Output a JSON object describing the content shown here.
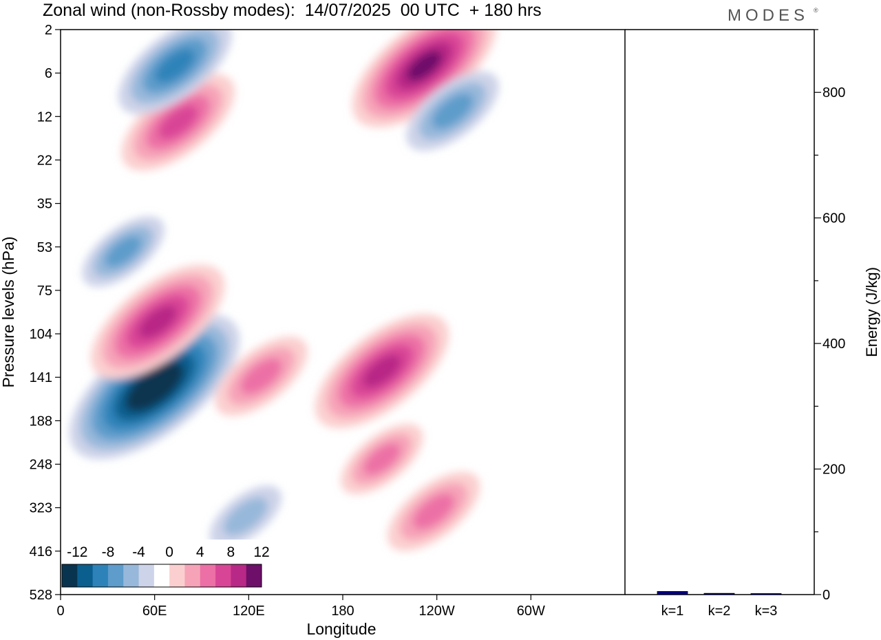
{
  "title": "Zonal wind (non-Rossby modes):  14/07/2025  00 UTC  + 180 hrs",
  "logo": "MODES",
  "chart_data": [
    {
      "type": "heatmap",
      "xlabel": "Longitude",
      "ylabel": "Pressure levels (hPa)",
      "x_ticks": [
        "0",
        "60E",
        "120E",
        "180",
        "120W",
        "60W"
      ],
      "y_ticks": [
        "2",
        "6",
        "12",
        "22",
        "35",
        "53",
        "75",
        "104",
        "141",
        "188",
        "248",
        "323",
        "416",
        "528"
      ],
      "colorbar": {
        "tick_labels": [
          "-12",
          "-8",
          "-4",
          "0",
          "4",
          "8",
          "12"
        ],
        "levels": [
          -14,
          -12,
          -10,
          -8,
          -6,
          -4,
          -2,
          2,
          4,
          6,
          8,
          10,
          12,
          14
        ],
        "colors": [
          "#08344f",
          "#0a5f8f",
          "#2d83b9",
          "#5d9ccb",
          "#97b8da",
          "#cdd3e8",
          "#ffffff",
          "#fbcfcf",
          "#f6a3b8",
          "#ec6fa5",
          "#d94596",
          "#b82886",
          "#6e0f6a"
        ]
      },
      "features": [
        {
          "lon": 60,
          "lev": 150,
          "value": -13.5,
          "note": "strong negative core"
        },
        {
          "lon": 62,
          "lev": 95,
          "value": 10
        },
        {
          "lon": 205,
          "lev": 135,
          "value": 10
        },
        {
          "lon": 128,
          "lev": 140,
          "value": 6
        },
        {
          "lon": 232,
          "lev": 5,
          "value": 11
        },
        {
          "lon": 75,
          "lev": 13,
          "value": 8
        },
        {
          "lon": 73,
          "lev": 5,
          "value": -8
        },
        {
          "lon": 250,
          "lev": 11,
          "value": -6
        },
        {
          "lon": 238,
          "lev": 330,
          "value": 6
        },
        {
          "lon": 205,
          "lev": 240,
          "value": 5
        },
        {
          "lon": 118,
          "lev": 340,
          "value": -4
        },
        {
          "lon": 40,
          "lev": 55,
          "value": -5
        }
      ]
    },
    {
      "type": "bar",
      "categories": [
        "k=1",
        "k=2",
        "k=3"
      ],
      "values": [
        5,
        2,
        1
      ],
      "ylabel": "Energy (J/kg)",
      "y_ticks": [
        "0",
        "200",
        "400",
        "600",
        "800"
      ],
      "ylim": [
        0,
        900
      ],
      "bar_color": "#000080"
    }
  ]
}
